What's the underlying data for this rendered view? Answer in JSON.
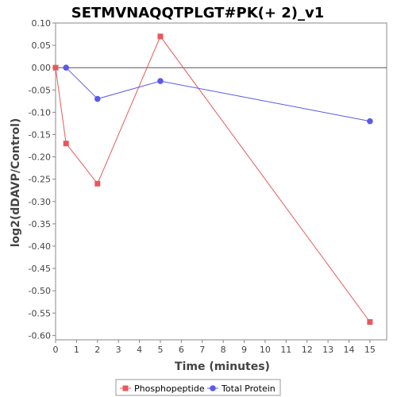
{
  "chart_data": {
    "type": "line",
    "title": "SETMVNAQQTPLGT#PK(+ 2)_v1",
    "xlabel": "Time (minutes)",
    "ylabel": "log2(dDAVP/Control)",
    "xlim": [
      0,
      15.8
    ],
    "ylim": [
      -0.61,
      0.1
    ],
    "xticks": [
      0,
      1,
      2,
      3,
      4,
      5,
      6,
      7,
      8,
      9,
      10,
      11,
      12,
      13,
      14,
      15
    ],
    "yticks": [
      0.1,
      0.05,
      0.0,
      -0.05,
      -0.1,
      -0.15,
      -0.2,
      -0.25,
      -0.3,
      -0.35,
      -0.4,
      -0.45,
      -0.5,
      -0.55,
      -0.6
    ],
    "ytick_labels": [
      "0.10",
      "0.05",
      "0.00",
      "-0.05",
      "-0.10",
      "-0.15",
      "-0.20",
      "-0.25",
      "-0.30",
      "-0.35",
      "-0.40",
      "-0.45",
      "-0.50",
      "-0.55",
      "-0.60"
    ],
    "zero_line": true,
    "grid": false,
    "legend_position": "bottom",
    "series": [
      {
        "name": "Phosphopeptide",
        "marker": "square",
        "color": "#e8585a",
        "x": [
          0,
          0.5,
          2,
          5,
          15
        ],
        "y": [
          0.0,
          -0.17,
          -0.26,
          0.07,
          -0.57
        ]
      },
      {
        "name": "Total Protein",
        "marker": "circle",
        "color": "#5a5ae8",
        "x": [
          0.5,
          2,
          5,
          15
        ],
        "y": [
          0.0,
          -0.07,
          -0.03,
          -0.12
        ]
      }
    ]
  }
}
